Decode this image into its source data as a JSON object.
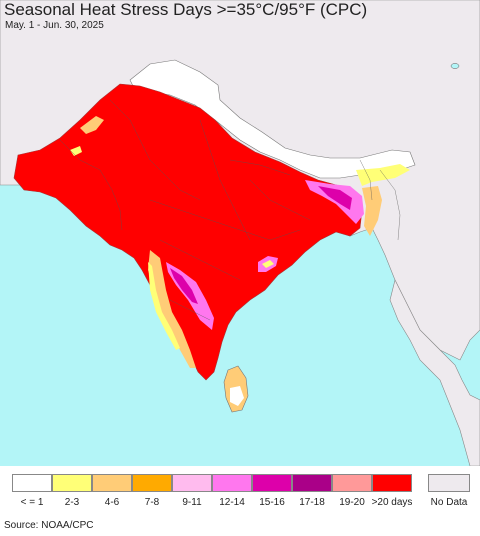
{
  "title": "Seasonal Heat Stress Days >=35°C/95°F (CPC)",
  "subtitle": "May. 1 - Jun. 30, 2025",
  "source": "Source: NOAA/CPC",
  "colors": {
    "ocean": "#b3f5f7",
    "land_outside": "#eeeaee",
    "over_20": "#ff0000",
    "band_19_20": "#ff9999",
    "band_17_18": "#aa0088",
    "band_15_16": "#dd00aa",
    "band_12_14": "#ff77ee",
    "band_9_11": "#ffbbee",
    "band_7_8": "#ffaa00",
    "band_4_6": "#ffcc77",
    "band_2_3": "#ffff77",
    "band_le1": "#ffffff",
    "no_data": "#eeeaee",
    "borders": "#555555"
  },
  "legend": [
    {
      "label": "< = 1",
      "color": "#ffffff"
    },
    {
      "label": "2-3",
      "color": "#ffff77"
    },
    {
      "label": "4-6",
      "color": "#ffcc77"
    },
    {
      "label": "7-8",
      "color": "#ffaa00"
    },
    {
      "label": "9-11",
      "color": "#ffbbee"
    },
    {
      "label": "12-14",
      "color": "#ff77ee"
    },
    {
      "label": "15-16",
      "color": "#dd00aa"
    },
    {
      "label": "17-18",
      "color": "#aa0088"
    },
    {
      "label": "19-20",
      "color": "#ff9999"
    },
    {
      "label": ">20 days",
      "color": "#ff0000"
    }
  ],
  "no_data": {
    "label": "No Data",
    "color": "#eeeaee"
  }
}
